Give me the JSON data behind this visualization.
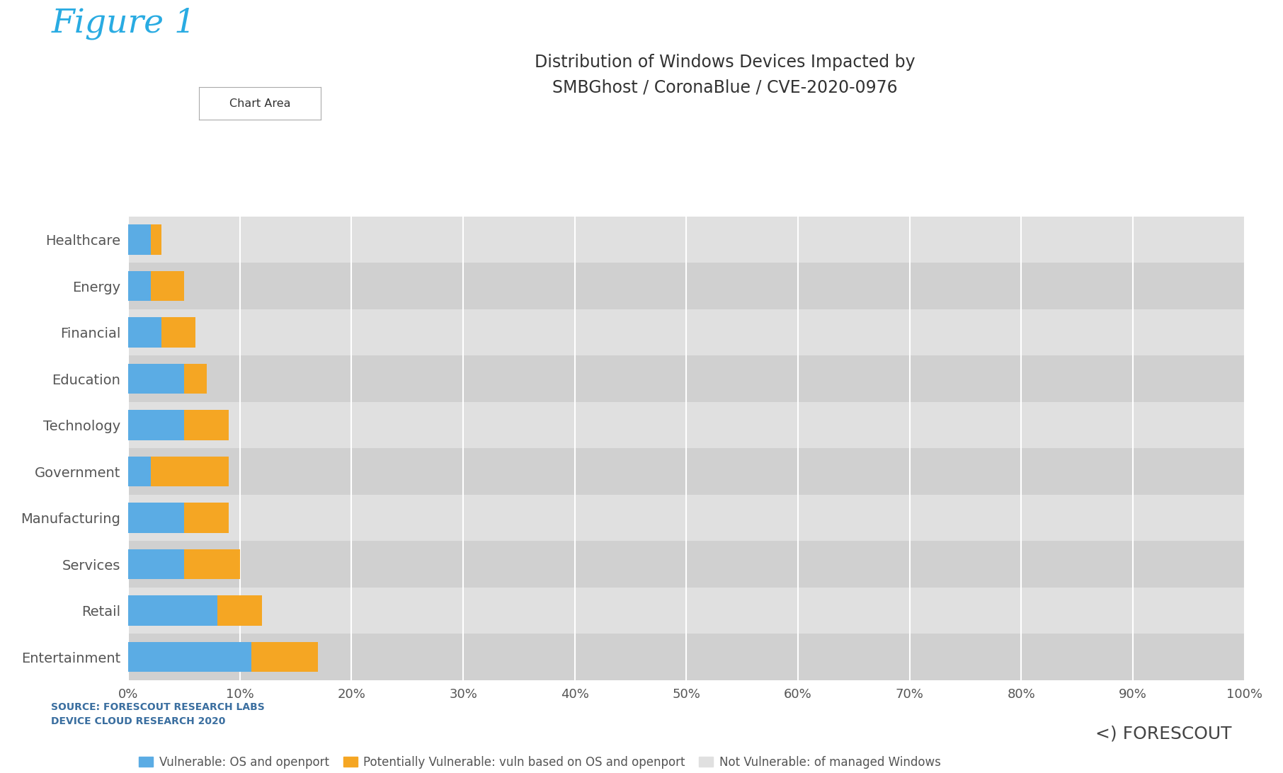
{
  "categories": [
    "Healthcare",
    "Energy",
    "Financial",
    "Education",
    "Technology",
    "Government",
    "Manufacturing",
    "Services",
    "Retail",
    "Entertainment"
  ],
  "vulnerable": [
    2,
    2,
    3,
    5,
    5,
    2,
    5,
    5,
    8,
    11
  ],
  "potentially_vulnerable": [
    1,
    3,
    3,
    2,
    4,
    7,
    4,
    5,
    4,
    6
  ],
  "color_vulnerable": "#5BACE4",
  "color_potentially": "#F5A623",
  "color_not_vulnerable_light": "#E0E0E0",
  "color_not_vulnerable_dark": "#D0D0D0",
  "title_line1": "Distribution of Windows Devices Impacted by",
  "title_line2": "SMBGhost / CoronaBlue / CVE-2020-0976",
  "figure_label": "Figure 1",
  "figure_label_color": "#29ABE2",
  "legend_labels": [
    "Vulnerable: OS and openport",
    "Potentially Vulnerable: vuln based on OS and openport",
    "Not Vulnerable: of managed Windows"
  ],
  "source_text": "SOURCE: FORESCOUT RESEARCH LABS\nDEVICE CLOUD RESEARCH 2020",
  "xlabel_ticks": [
    "0%",
    "10%",
    "20%",
    "30%",
    "40%",
    "50%",
    "60%",
    "70%",
    "80%",
    "90%",
    "100%"
  ],
  "xlabel_values": [
    0,
    10,
    20,
    30,
    40,
    50,
    60,
    70,
    80,
    90,
    100
  ],
  "chart_area_label": "Chart Area",
  "background_color": "#FFFFFF",
  "bar_height": 0.65,
  "forescout_logo": "<) FORESCOUT"
}
